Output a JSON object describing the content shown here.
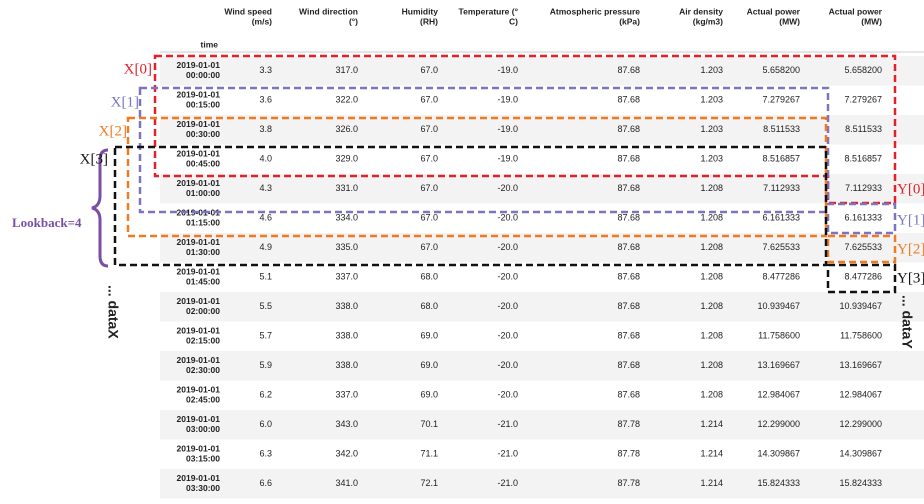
{
  "table": {
    "index_name": "time",
    "columns": [
      [
        "Wind speed",
        "(m/s)"
      ],
      [
        "Wind direction",
        "(°)"
      ],
      [
        "Humidity",
        "(RH)"
      ],
      [
        "Temperature (°",
        "C)"
      ],
      [
        "Atmospheric pressure",
        "(kPa)"
      ],
      [
        "Air density",
        "(kg/m3)"
      ],
      [
        "Actual power",
        "(MW)"
      ],
      [
        "Actual power",
        "(MW)"
      ]
    ],
    "rows": [
      {
        "time": [
          "2019-01-01",
          "00:00:00"
        ],
        "values": [
          "3.3",
          "317.0",
          "67.0",
          "-19.0",
          "87.68",
          "1.203",
          "5.658200",
          "5.658200"
        ]
      },
      {
        "time": [
          "2019-01-01",
          "00:15:00"
        ],
        "values": [
          "3.6",
          "322.0",
          "67.0",
          "-19.0",
          "87.68",
          "1.203",
          "7.279267",
          "7.279267"
        ]
      },
      {
        "time": [
          "2019-01-01",
          "00:30:00"
        ],
        "values": [
          "3.8",
          "326.0",
          "67.0",
          "-19.0",
          "87.68",
          "1.203",
          "8.511533",
          "8.511533"
        ]
      },
      {
        "time": [
          "2019-01-01",
          "00:45:00"
        ],
        "values": [
          "4.0",
          "329.0",
          "67.0",
          "-19.0",
          "87.68",
          "1.203",
          "8.516857",
          "8.516857"
        ]
      },
      {
        "time": [
          "2019-01-01",
          "01:00:00"
        ],
        "values": [
          "4.3",
          "331.0",
          "67.0",
          "-20.0",
          "87.68",
          "1.208",
          "7.112933",
          "7.112933"
        ]
      },
      {
        "time": [
          "2019-01-01",
          "01:15:00"
        ],
        "values": [
          "4.6",
          "334.0",
          "67.0",
          "-20.0",
          "87.68",
          "1.208",
          "6.161333",
          "6.161333"
        ]
      },
      {
        "time": [
          "2019-01-01",
          "01:30:00"
        ],
        "values": [
          "4.9",
          "335.0",
          "67.0",
          "-20.0",
          "87.68",
          "1.208",
          "7.625533",
          "7.625533"
        ]
      },
      {
        "time": [
          "2019-01-01",
          "01:45:00"
        ],
        "values": [
          "5.1",
          "337.0",
          "68.0",
          "-20.0",
          "87.68",
          "1.208",
          "8.477286",
          "8.477286"
        ]
      },
      {
        "time": [
          "2019-01-01",
          "02:00:00"
        ],
        "values": [
          "5.5",
          "338.0",
          "68.0",
          "-20.0",
          "87.68",
          "1.208",
          "10.939467",
          "10.939467"
        ]
      },
      {
        "time": [
          "2019-01-01",
          "02:15:00"
        ],
        "values": [
          "5.7",
          "338.0",
          "69.0",
          "-20.0",
          "87.68",
          "1.208",
          "11.758600",
          "11.758600"
        ]
      },
      {
        "time": [
          "2019-01-01",
          "02:30:00"
        ],
        "values": [
          "5.9",
          "338.0",
          "69.0",
          "-20.0",
          "87.68",
          "1.208",
          "13.169667",
          "13.169667"
        ]
      },
      {
        "time": [
          "2019-01-01",
          "02:45:00"
        ],
        "values": [
          "6.2",
          "337.0",
          "69.0",
          "-20.0",
          "87.68",
          "1.208",
          "12.984067",
          "12.984067"
        ]
      },
      {
        "time": [
          "2019-01-01",
          "03:00:00"
        ],
        "values": [
          "6.0",
          "343.0",
          "70.1",
          "-21.0",
          "87.78",
          "1.214",
          "12.299000",
          "12.299000"
        ]
      },
      {
        "time": [
          "2019-01-01",
          "03:15:00"
        ],
        "values": [
          "6.3",
          "342.0",
          "71.1",
          "-21.0",
          "87.78",
          "1.214",
          "14.309867",
          "14.309867"
        ]
      },
      {
        "time": [
          "2019-01-01",
          "03:30:00"
        ],
        "values": [
          "6.6",
          "341.0",
          "72.1",
          "-21.0",
          "87.78",
          "1.214",
          "15.824333",
          "15.824333"
        ]
      }
    ]
  },
  "annotations": {
    "x_windows": [
      "X[0]",
      "X[1]",
      "X[2]",
      "X[3]"
    ],
    "y_windows": [
      "Y[0]",
      "Y[1]",
      "Y[2]",
      "Y[3]"
    ],
    "lookback": "Lookback=4",
    "data_x": "... dataX",
    "data_y": "... dataY"
  }
}
